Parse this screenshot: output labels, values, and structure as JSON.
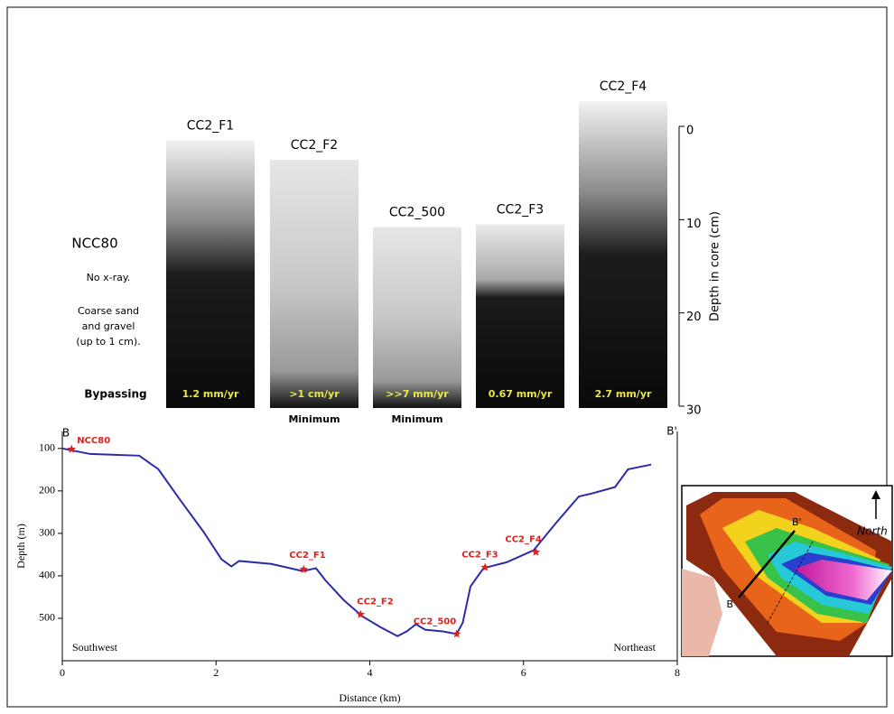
{
  "chart_data": [
    {
      "type": "cores",
      "ylabel": "Depth in core (cm)",
      "ylim": [
        0,
        30
      ],
      "yticks": [
        0,
        10,
        20,
        30
      ],
      "reference": {
        "name": "NCC80",
        "notes": [
          "No x-ray.",
          "Coarse sand",
          "and gravel",
          "(up to 1 cm)."
        ],
        "rate": "Bypassing"
      },
      "cores": [
        {
          "name": "CC2_F1",
          "top": 1.5,
          "rate": "1.2 mm/yr"
        },
        {
          "name": "CC2_F2",
          "top": 3.6,
          "rate": ">1 cm/yr",
          "note": "Minimum"
        },
        {
          "name": "CC2_500",
          "top": 10.8,
          "rate": ">>7 mm/yr",
          "note": "Minimum"
        },
        {
          "name": "CC2_F3",
          "top": 10.5,
          "rate": "0.67 mm/yr"
        },
        {
          "name": "CC2_F4",
          "top": -2.7,
          "rate": "2.7 mm/yr"
        }
      ]
    },
    {
      "type": "line",
      "xlabel": "Distance (km)",
      "ylabel": "Depth (m)",
      "x": [
        0,
        0.36,
        1.0,
        1.25,
        1.54,
        1.84,
        2.07,
        2.2,
        2.3,
        2.72,
        3.13,
        3.3,
        3.42,
        3.66,
        3.9,
        4.13,
        4.36,
        4.48,
        4.6,
        4.72,
        4.95,
        5.13,
        5.21,
        5.31,
        5.48,
        5.78,
        6.13,
        6.42,
        6.72,
        6.89,
        7.19,
        7.36,
        7.66
      ],
      "values": [
        100,
        113,
        117,
        149,
        223,
        297,
        361,
        378,
        365,
        372,
        389,
        382,
        410,
        457,
        495,
        520,
        542,
        531,
        514,
        527,
        531,
        537,
        510,
        425,
        382,
        368,
        340,
        276,
        213,
        206,
        191,
        149,
        138
      ],
      "color": "#2b2ba8",
      "xlim": [
        0,
        8
      ],
      "ylim": [
        600,
        60
      ],
      "xticks": [
        0,
        2,
        4,
        6,
        8
      ],
      "yticks": [
        100,
        200,
        300,
        400,
        500
      ],
      "stations": {
        "names": [
          "NCC80",
          "CC2_F1",
          "CC2_F2",
          "CC2_500",
          "CC2_F3",
          "CC2_F4"
        ],
        "x": [
          0.12,
          3.14,
          3.88,
          5.13,
          5.5,
          6.16
        ],
        "values": [
          102,
          385,
          491,
          537,
          380,
          344
        ],
        "color": "#e0201b"
      },
      "annotations": {
        "start": "B",
        "end": "B'",
        "left": "Southwest",
        "right": "Northeast"
      }
    }
  ],
  "inset": {
    "north": "North",
    "start": "B",
    "end": "B'"
  }
}
